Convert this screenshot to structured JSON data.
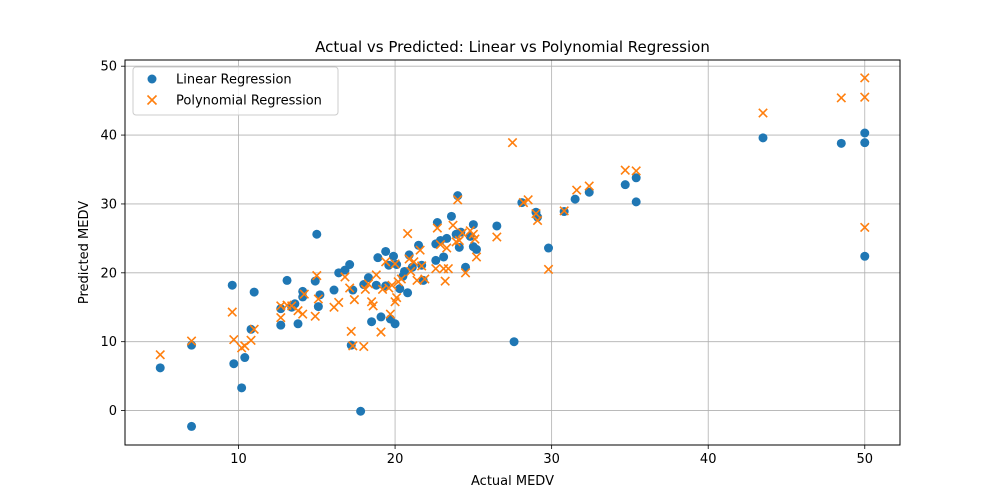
{
  "chart_data": {
    "type": "scatter",
    "title": "Actual vs Predicted: Linear vs Polynomial Regression",
    "xlabel": "Actual MEDV",
    "ylabel": "Predicted MEDV",
    "xlim": [
      2.75,
      52.25
    ],
    "ylim": [
      -5.0,
      50.9
    ],
    "xticks": [
      10,
      20,
      30,
      40,
      50
    ],
    "yticks": [
      0,
      10,
      20,
      30,
      40,
      50
    ],
    "grid": true,
    "legend_position": "upper-left",
    "series": [
      {
        "name": "Linear Regression",
        "marker": "circle",
        "color": "#1f77b4",
        "points": [
          [
            5.0,
            6.2
          ],
          [
            7.0,
            9.5
          ],
          [
            7.0,
            -2.3
          ],
          [
            9.6,
            18.2
          ],
          [
            9.7,
            6.8
          ],
          [
            10.2,
            3.3
          ],
          [
            10.4,
            7.7
          ],
          [
            10.8,
            11.8
          ],
          [
            11.0,
            17.2
          ],
          [
            12.7,
            12.4
          ],
          [
            12.7,
            14.8
          ],
          [
            13.1,
            18.9
          ],
          [
            13.4,
            15.0
          ],
          [
            13.6,
            15.5
          ],
          [
            13.8,
            12.6
          ],
          [
            14.1,
            16.5
          ],
          [
            14.1,
            17.3
          ],
          [
            14.9,
            18.8
          ],
          [
            15.0,
            25.6
          ],
          [
            15.1,
            15.1
          ],
          [
            15.2,
            16.8
          ],
          [
            16.1,
            17.5
          ],
          [
            16.4,
            20.0
          ],
          [
            16.8,
            20.4
          ],
          [
            17.1,
            21.2
          ],
          [
            17.2,
            9.5
          ],
          [
            17.3,
            17.5
          ],
          [
            17.8,
            -0.1
          ],
          [
            18.0,
            18.3
          ],
          [
            18.3,
            19.3
          ],
          [
            18.5,
            12.9
          ],
          [
            18.8,
            18.2
          ],
          [
            18.9,
            22.2
          ],
          [
            19.1,
            13.6
          ],
          [
            19.4,
            18.1
          ],
          [
            19.4,
            23.1
          ],
          [
            19.6,
            21.1
          ],
          [
            19.7,
            13.3
          ],
          [
            19.9,
            22.4
          ],
          [
            20.0,
            12.6
          ],
          [
            20.1,
            21.2
          ],
          [
            20.3,
            17.7
          ],
          [
            20.5,
            19.5
          ],
          [
            20.6,
            20.2
          ],
          [
            20.8,
            17.1
          ],
          [
            20.9,
            22.6
          ],
          [
            21.1,
            20.8
          ],
          [
            21.5,
            24.0
          ],
          [
            21.7,
            21.1
          ],
          [
            21.8,
            18.9
          ],
          [
            22.6,
            21.8
          ],
          [
            22.6,
            24.2
          ],
          [
            22.7,
            27.3
          ],
          [
            22.9,
            24.7
          ],
          [
            23.1,
            22.3
          ],
          [
            23.3,
            25.0
          ],
          [
            23.6,
            28.2
          ],
          [
            23.9,
            25.6
          ],
          [
            24.0,
            31.2
          ],
          [
            24.1,
            23.7
          ],
          [
            24.2,
            25.9
          ],
          [
            24.5,
            20.8
          ],
          [
            24.8,
            25.3
          ],
          [
            25.0,
            27.0
          ],
          [
            25.0,
            23.8
          ],
          [
            25.2,
            23.4
          ],
          [
            26.5,
            26.8
          ],
          [
            27.6,
            10.0
          ],
          [
            28.1,
            30.2
          ],
          [
            29.0,
            28.8
          ],
          [
            29.1,
            28.1
          ],
          [
            29.8,
            23.6
          ],
          [
            30.8,
            28.9
          ],
          [
            31.5,
            30.7
          ],
          [
            32.4,
            31.7
          ],
          [
            34.7,
            32.8
          ],
          [
            35.4,
            33.8
          ],
          [
            35.4,
            30.3
          ],
          [
            43.5,
            39.6
          ],
          [
            48.5,
            38.8
          ],
          [
            50.0,
            40.3
          ],
          [
            50.0,
            38.9
          ],
          [
            50.0,
            22.4
          ]
        ]
      },
      {
        "name": "Polynomial Regression",
        "marker": "x",
        "color": "#ff7f0e",
        "points": [
          [
            5.0,
            8.1
          ],
          [
            7.0,
            10.1
          ],
          [
            9.6,
            14.3
          ],
          [
            9.7,
            10.3
          ],
          [
            10.2,
            9.1
          ],
          [
            10.4,
            9.4
          ],
          [
            10.8,
            10.2
          ],
          [
            11.0,
            11.8
          ],
          [
            12.7,
            15.2
          ],
          [
            12.7,
            13.5
          ],
          [
            13.1,
            15.3
          ],
          [
            13.4,
            15.2
          ],
          [
            13.8,
            14.5
          ],
          [
            14.1,
            14.0
          ],
          [
            14.2,
            16.9
          ],
          [
            14.9,
            13.7
          ],
          [
            15.0,
            19.6
          ],
          [
            15.1,
            16.2
          ],
          [
            16.1,
            15.0
          ],
          [
            16.4,
            15.7
          ],
          [
            16.8,
            19.4
          ],
          [
            17.1,
            17.8
          ],
          [
            17.2,
            11.5
          ],
          [
            17.3,
            9.4
          ],
          [
            17.4,
            16.1
          ],
          [
            18.0,
            9.3
          ],
          [
            18.1,
            17.6
          ],
          [
            18.3,
            18.4
          ],
          [
            18.5,
            15.8
          ],
          [
            18.6,
            15.2
          ],
          [
            18.8,
            19.7
          ],
          [
            19.1,
            11.4
          ],
          [
            19.2,
            17.6
          ],
          [
            19.4,
            21.6
          ],
          [
            19.6,
            17.8
          ],
          [
            19.7,
            14.0
          ],
          [
            19.8,
            18.2
          ],
          [
            20.0,
            15.8
          ],
          [
            20.0,
            21.3
          ],
          [
            20.1,
            16.4
          ],
          [
            20.2,
            18.7
          ],
          [
            20.4,
            19.1
          ],
          [
            20.8,
            25.7
          ],
          [
            20.9,
            22.0
          ],
          [
            21.0,
            20.2
          ],
          [
            21.2,
            21.6
          ],
          [
            21.4,
            18.9
          ],
          [
            21.6,
            23.3
          ],
          [
            21.7,
            21.0
          ],
          [
            21.9,
            19.1
          ],
          [
            22.6,
            20.6
          ],
          [
            22.7,
            26.5
          ],
          [
            22.9,
            24.1
          ],
          [
            23.1,
            20.6
          ],
          [
            23.2,
            18.8
          ],
          [
            23.3,
            23.6
          ],
          [
            23.4,
            20.6
          ],
          [
            23.7,
            26.9
          ],
          [
            23.9,
            24.5
          ],
          [
            24.0,
            30.6
          ],
          [
            24.1,
            24.7
          ],
          [
            24.3,
            25.8
          ],
          [
            24.5,
            20.0
          ],
          [
            24.8,
            26.1
          ],
          [
            25.0,
            25.6
          ],
          [
            25.1,
            24.9
          ],
          [
            25.2,
            22.3
          ],
          [
            26.5,
            25.2
          ],
          [
            27.5,
            38.9
          ],
          [
            28.2,
            30.2
          ],
          [
            28.5,
            30.6
          ],
          [
            29.0,
            28.6
          ],
          [
            29.1,
            27.6
          ],
          [
            29.8,
            20.5
          ],
          [
            30.8,
            29.0
          ],
          [
            31.6,
            32.0
          ],
          [
            32.4,
            32.6
          ],
          [
            34.7,
            34.9
          ],
          [
            35.4,
            34.8
          ],
          [
            43.5,
            43.2
          ],
          [
            48.5,
            45.4
          ],
          [
            50.0,
            48.3
          ],
          [
            50.0,
            45.5
          ],
          [
            50.0,
            26.6
          ]
        ]
      }
    ]
  }
}
